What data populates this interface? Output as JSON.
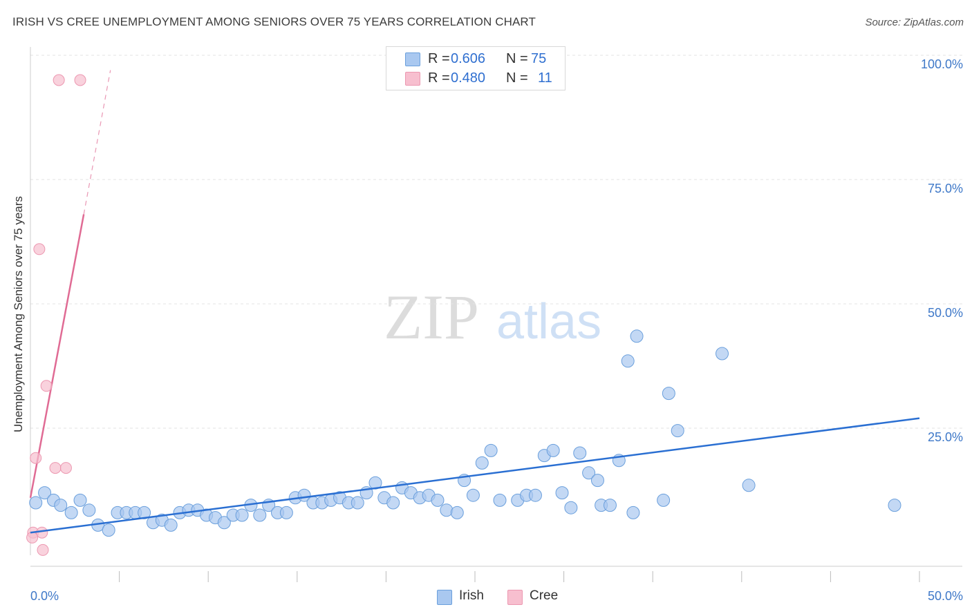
{
  "title": "IRISH VS CREE UNEMPLOYMENT AMONG SENIORS OVER 75 YEARS CORRELATION CHART",
  "source": "Source: ZipAtlas.com",
  "watermark": {
    "zip": "ZIP",
    "atlas": "atlas"
  },
  "legend": {
    "rows": [
      {
        "r_label": "R =",
        "r_value": "0.606",
        "n_label": "N =",
        "n_value": "75",
        "color": "#a9c8f0"
      },
      {
        "r_label": "R =",
        "r_value": "0.480",
        "n_label": "N =",
        "n_value": "11",
        "color": "#f7bfcf"
      }
    ]
  },
  "bottom_legend": {
    "irish": "Irish",
    "cree": "Cree"
  },
  "chart_data": {
    "type": "scatter",
    "title": "IRISH VS CREE UNEMPLOYMENT AMONG SENIORS OVER 75 YEARS CORRELATION CHART",
    "xlabel": "",
    "ylabel": "Unemployment Among Seniors over 75 years",
    "xlim": [
      0,
      50
    ],
    "ylim": [
      0,
      100
    ],
    "x_tick_labels": [
      "0.0%",
      "50.0%"
    ],
    "y_tick_labels": [
      "100.0%",
      "75.0%",
      "50.0%",
      "25.0%"
    ],
    "y_ticks": [
      100,
      75,
      50,
      25
    ],
    "grid": true,
    "legend_position": "top-center",
    "series": [
      {
        "name": "Irish",
        "color": "#a9c8f0",
        "stroke": "#6a9fdc",
        "trend_color": "#2a6fd2",
        "trend": {
          "x0": 0,
          "y0": 4.0,
          "x1": 50,
          "y1": 27.0
        },
        "points": [
          [
            0.3,
            10
          ],
          [
            0.8,
            12
          ],
          [
            1.3,
            10.5
          ],
          [
            1.7,
            9.5
          ],
          [
            2.3,
            8
          ],
          [
            2.8,
            10.5
          ],
          [
            3.3,
            8.5
          ],
          [
            3.8,
            5.5
          ],
          [
            4.4,
            4.5
          ],
          [
            4.9,
            8
          ],
          [
            5.4,
            8
          ],
          [
            5.9,
            8
          ],
          [
            6.4,
            8
          ],
          [
            6.9,
            6
          ],
          [
            7.4,
            6.5
          ],
          [
            7.9,
            5.5
          ],
          [
            8.4,
            8
          ],
          [
            8.9,
            8.5
          ],
          [
            9.4,
            8.5
          ],
          [
            9.9,
            7.5
          ],
          [
            10.4,
            7
          ],
          [
            10.9,
            6
          ],
          [
            11.4,
            7.5
          ],
          [
            11.9,
            7.5
          ],
          [
            12.4,
            9.5
          ],
          [
            12.9,
            7.5
          ],
          [
            13.4,
            9.5
          ],
          [
            13.9,
            8
          ],
          [
            14.4,
            8
          ],
          [
            14.9,
            11
          ],
          [
            15.4,
            11.5
          ],
          [
            15.9,
            10
          ],
          [
            16.4,
            10
          ],
          [
            16.9,
            10.5
          ],
          [
            17.4,
            11
          ],
          [
            17.9,
            10
          ],
          [
            18.4,
            10
          ],
          [
            18.9,
            12
          ],
          [
            19.4,
            14
          ],
          [
            19.9,
            11
          ],
          [
            20.4,
            10
          ],
          [
            20.9,
            13
          ],
          [
            21.4,
            12
          ],
          [
            21.9,
            11
          ],
          [
            22.4,
            11.5
          ],
          [
            22.9,
            10.5
          ],
          [
            23.4,
            8.5
          ],
          [
            24.0,
            8
          ],
          [
            24.4,
            14.5
          ],
          [
            24.9,
            11.5
          ],
          [
            25.4,
            18
          ],
          [
            25.9,
            20.5
          ],
          [
            26.4,
            10.5
          ],
          [
            27.4,
            10.5
          ],
          [
            27.9,
            11.5
          ],
          [
            28.4,
            11.5
          ],
          [
            28.9,
            19.5
          ],
          [
            29.4,
            20.5
          ],
          [
            29.9,
            12
          ],
          [
            30.4,
            9
          ],
          [
            30.9,
            20
          ],
          [
            31.4,
            16
          ],
          [
            31.9,
            14.5
          ],
          [
            32.1,
            9.5
          ],
          [
            32.6,
            9.5
          ],
          [
            33.1,
            18.5
          ],
          [
            33.6,
            38.5
          ],
          [
            33.9,
            8
          ],
          [
            34.1,
            43.5
          ],
          [
            35.6,
            10.5
          ],
          [
            35.9,
            32
          ],
          [
            36.4,
            24.5
          ],
          [
            38.9,
            40
          ],
          [
            40.4,
            13.5
          ],
          [
            48.6,
            9.5
          ]
        ]
      },
      {
        "name": "Cree",
        "color": "#f7bfcf",
        "stroke": "#ec97b0",
        "trend_color": "#e06b94",
        "trend": {
          "x0": 0,
          "y0": 11.0,
          "x1": 3.0,
          "y1": 68.0
        },
        "trend_dashed_to": {
          "x": 4.5,
          "y": 97.0
        },
        "points": [
          [
            0.15,
            4
          ],
          [
            0.3,
            19
          ],
          [
            0.5,
            61
          ],
          [
            0.65,
            4
          ],
          [
            0.7,
            0.5
          ],
          [
            0.9,
            33.5
          ],
          [
            1.4,
            17
          ],
          [
            1.6,
            95
          ],
          [
            2.0,
            17
          ],
          [
            2.8,
            95
          ],
          [
            0.1,
            3
          ]
        ]
      }
    ]
  }
}
